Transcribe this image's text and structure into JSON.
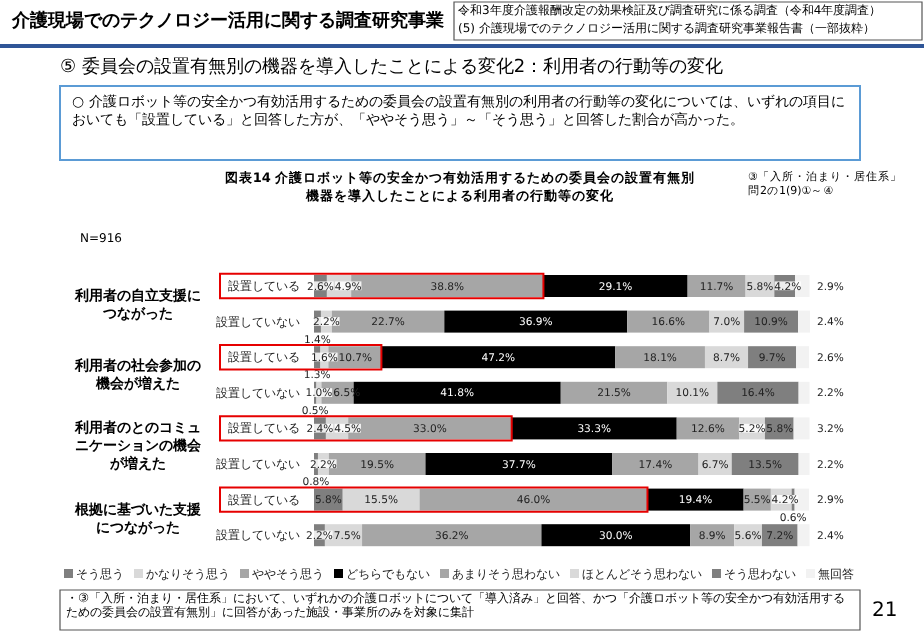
{
  "chart_data": {
    "type": "bar",
    "orientation": "horizontal",
    "stacked": true,
    "legend": "bottom",
    "title": "図表14  介護ロボット等の安全かつ有効活用するための委員会の設置有無別",
    "subtitle": "機器を導入したことによる利用者の行動等の変化",
    "categories": [
      "設置している",
      "設置していない",
      "設置している",
      "設置していない",
      "設置している",
      "設置していない",
      "設置している",
      "設置していない"
    ],
    "series": [
      {
        "name": "そう思う",
        "color": "#7f7f7f",
        "values": [
          2.6,
          1.4,
          1.3,
          0.5,
          2.4,
          0.8,
          5.8,
          2.2
        ],
        "value_labels": [
          "2.6%",
          "1.4%",
          "1.3%",
          "0.5%",
          "2.4%",
          "0.8%",
          "5.8%",
          "2.2%"
        ]
      },
      {
        "name": "かなりそう思う",
        "color": "#d9d9d9",
        "values": [
          4.9,
          2.2,
          1.6,
          1.0,
          4.5,
          2.2,
          15.5,
          7.5
        ],
        "value_labels": [
          "4.9%",
          "2.2%",
          "1.6%",
          "1.0%",
          "4.5%",
          "2.2%",
          "15.5%",
          "7.5%"
        ]
      },
      {
        "name": "ややそう思う",
        "color": "#a6a6a6",
        "values": [
          38.8,
          22.7,
          10.7,
          6.5,
          33.0,
          19.5,
          46.0,
          36.2
        ],
        "value_labels": [
          "38.8%",
          "22.7%",
          "10.7%",
          "6.5%",
          "33.0%",
          "19.5%",
          "46.0%",
          "36.2%"
        ]
      },
      {
        "name": "どちらでもない",
        "color": "#000000",
        "values": [
          29.1,
          36.9,
          47.2,
          41.8,
          33.3,
          37.7,
          19.4,
          30.0
        ],
        "value_labels": [
          "29.1%",
          "36.9%",
          "47.2%",
          "41.8%",
          "33.3%",
          "37.7%",
          "19.4%",
          "30.0%"
        ]
      },
      {
        "name": "あまりそう思わない",
        "color": "#a6a6a6",
        "values": [
          11.7,
          16.6,
          18.1,
          21.5,
          12.6,
          17.4,
          5.5,
          8.9
        ],
        "value_labels": [
          "11.7%",
          "16.6%",
          "18.1%",
          "21.5%",
          "12.6%",
          "17.4%",
          "5.5%",
          "8.9%"
        ]
      },
      {
        "name": "ほとんどそう思わない",
        "color": "#d9d9d9",
        "values": [
          5.8,
          7.0,
          8.7,
          10.1,
          5.2,
          6.7,
          4.2,
          5.6
        ],
        "value_labels": [
          "5.8%",
          "7.0%",
          "8.7%",
          "10.1%",
          "5.2%",
          "6.7%",
          "4.2%",
          "5.6%"
        ]
      },
      {
        "name": "そう思わない",
        "color": "#7f7f7f",
        "values": [
          4.2,
          10.9,
          9.7,
          16.4,
          5.8,
          13.5,
          0.6,
          7.2
        ],
        "value_labels": [
          "4.2%",
          "10.9%",
          "9.7%",
          "16.4%",
          "5.8%",
          "13.5%",
          "0.6%",
          "7.2%"
        ]
      },
      {
        "name": "無回答",
        "color": "#f2f2f2",
        "values": [
          2.9,
          2.4,
          2.6,
          2.2,
          3.2,
          2.2,
          2.9,
          2.4
        ],
        "value_labels": [
          "2.9%",
          "2.4%",
          "2.6%",
          "2.2%",
          "3.2%",
          "2.2%",
          "2.9%",
          "2.4%"
        ]
      }
    ],
    "annotations": [
      "介護現場でのテクノロジー活用に関する調査研究事業",
      "令和3年度介護報酬改定の効果検証及び調査研究に係る調査（令和4年度調査）",
      "(5) 介護現場でのテクノロジー活用に関する調査研究事業報告書（一部抜粋）",
      "⑤ 委員会の設置有無別の機器を導入したことによる変化2：利用者の行動等の変化",
      "○ 介護ロボット等の安全かつ有効活用するための委員会の設置有無別の利用者の行動等の変化については、いずれの項目においても「設置している」と回答した方が、「ややそう思う」～「そう思う」と回答した割合が高かった。",
      "③「入所・泊まり・居住系」問2の1(9)①～④",
      "N=916",
      "利用者の自立支援につながった",
      "利用者の社会参加の機会が増えた",
      "利用者のとのコミュニケーションの機会が増えた",
      "根拠に基づいた支援につながった",
      "・③「入所・泊まり・居住系」において、いずれかの介護ロボットについて「導入済み」と回答、かつ「介護ロボット等の安全かつ有効活用するための委員会の設置有無別」に回答があった施設・事業所のみを対象に集計",
      "21"
    ]
  }
}
